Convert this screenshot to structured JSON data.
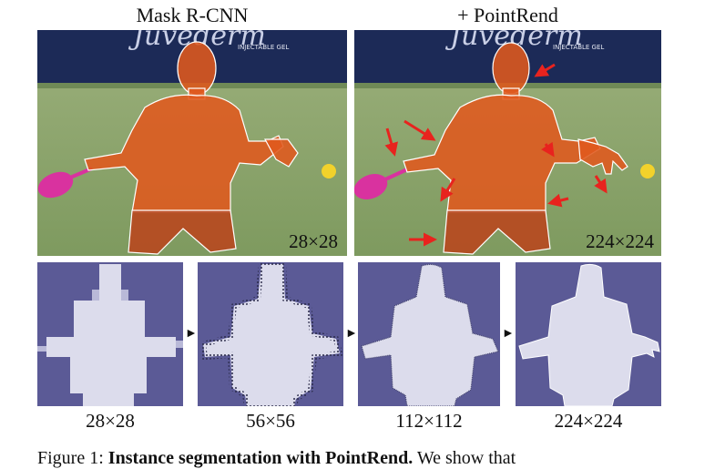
{
  "figure": {
    "titles": [
      "Mask R-CNN",
      "+ PointRend"
    ],
    "top_panel_resolutions": [
      "28×28",
      "224×224"
    ],
    "sign_text": "INJECTABLE GEL",
    "sign_brand_partial": "Juvederm",
    "bottom_labels": [
      "28×28",
      "56×56",
      "112×112",
      "224×224"
    ],
    "colors": {
      "mask_overlay": "#e0591e",
      "court_green": "#8aa36b",
      "sign_navy": "#1c2a57",
      "mask_background": "#5b5a96",
      "mask_foreground": "#dcdcec",
      "arrow_red": "#e8231e",
      "ball_yellow": "#f2d22b",
      "racket_pink": "#d9329f"
    },
    "caption_partial": {
      "prefix": "Figure 1: ",
      "bold": "Instance segmentation with PointRend.",
      "rest": " We show that"
    }
  }
}
